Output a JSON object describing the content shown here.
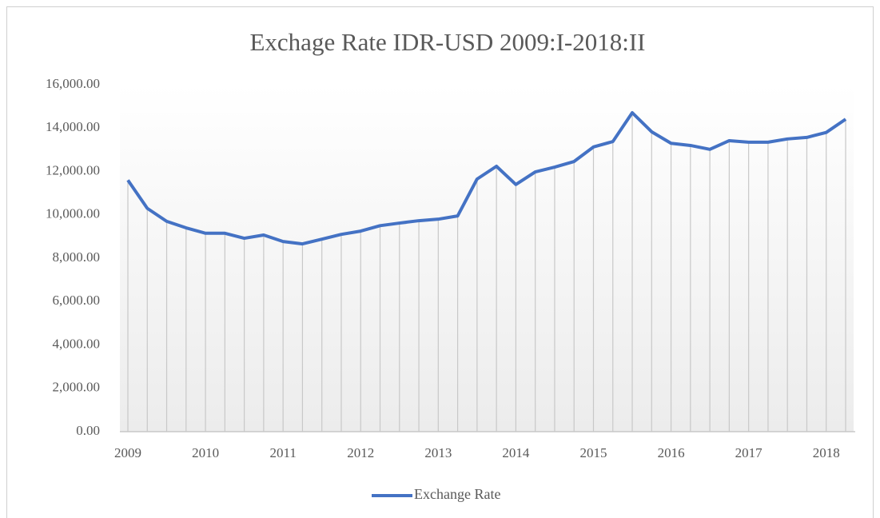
{
  "chart_data": {
    "type": "line",
    "title": "Exchage Rate IDR-USD 2009:I-2018:II",
    "categories": [
      "2009",
      null,
      null,
      null,
      "2010",
      null,
      null,
      null,
      "2011",
      null,
      null,
      null,
      "2012",
      null,
      null,
      null,
      "2013",
      null,
      null,
      null,
      "2014",
      null,
      null,
      null,
      "2015",
      null,
      null,
      null,
      "2016",
      null,
      null,
      null,
      "2017",
      null,
      null,
      null,
      "2018",
      null
    ],
    "series": [
      {
        "name": "Exchange Rate",
        "color": "#4472c4",
        "values": [
          11600,
          10300,
          9700,
          9400,
          9150,
          9150,
          8920,
          9070,
          8770,
          8660,
          8880,
          9100,
          9250,
          9500,
          9620,
          9730,
          9800,
          9950,
          11650,
          12240,
          11400,
          11980,
          12200,
          12460,
          13130,
          13380,
          14710,
          13830,
          13300,
          13200,
          13020,
          13420,
          13350,
          13350,
          13500,
          13570,
          13800,
          14410
        ]
      }
    ],
    "ylim": [
      0,
      16000
    ],
    "yticks": [
      {
        "value": 0,
        "label": "0.00"
      },
      {
        "value": 2000,
        "label": "2,000.00"
      },
      {
        "value": 4000,
        "label": "4,000.00"
      },
      {
        "value": 6000,
        "label": "6,000.00"
      },
      {
        "value": 8000,
        "label": "8,000.00"
      },
      {
        "value": 10000,
        "label": "10,000.00"
      },
      {
        "value": 12000,
        "label": "12,000.00"
      },
      {
        "value": 14000,
        "label": "14,000.00"
      },
      {
        "value": 16000,
        "label": "16,000.00"
      }
    ],
    "legend": "bottom"
  }
}
